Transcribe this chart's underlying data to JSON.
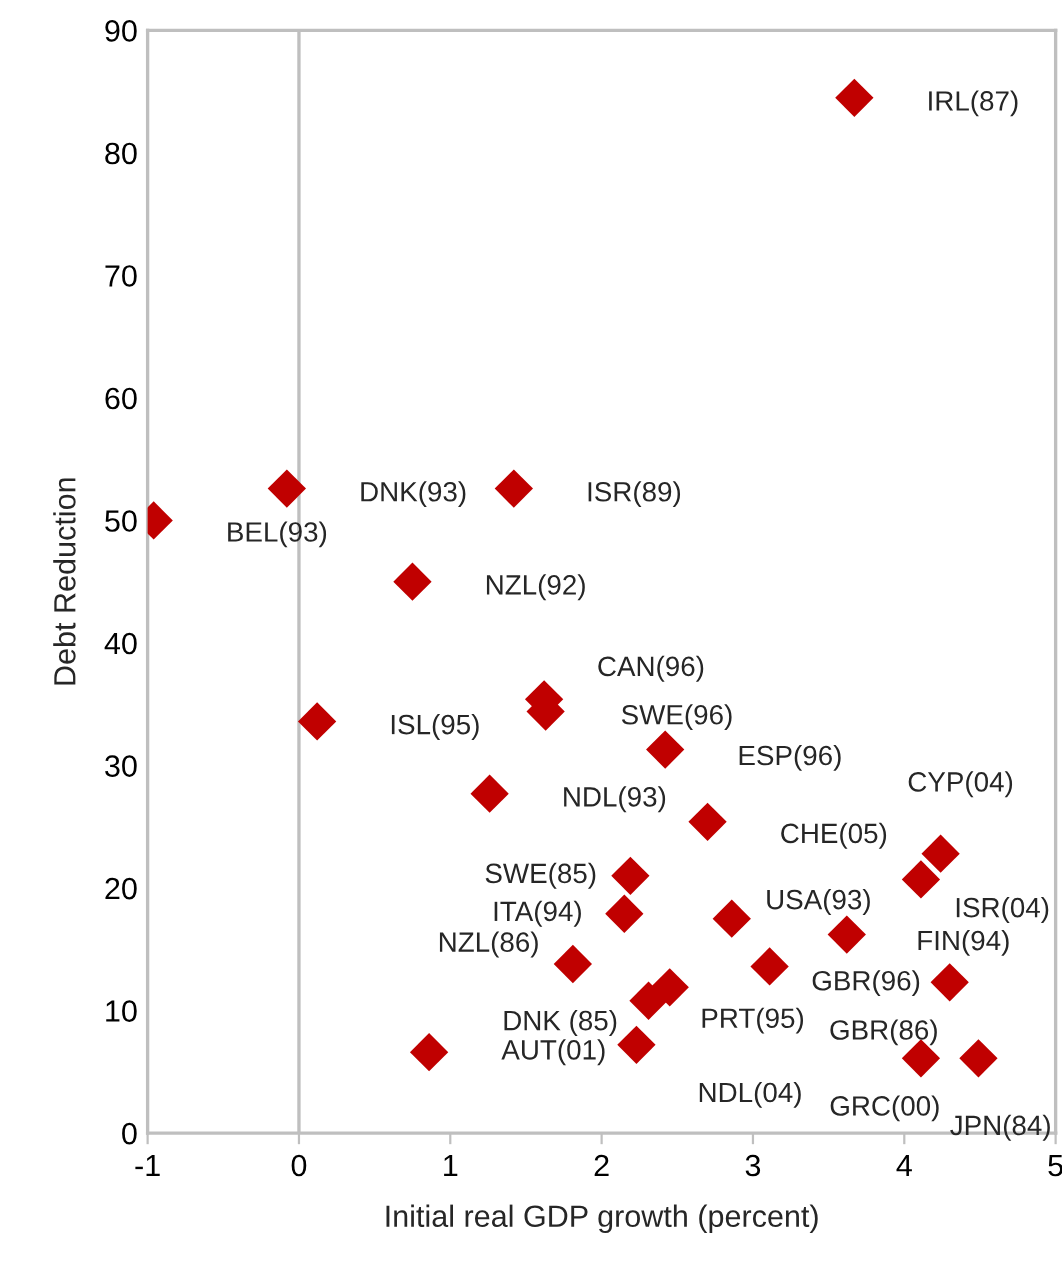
{
  "chart_data": {
    "type": "scatter",
    "xlabel": "Initial real GDP growth (percent)",
    "ylabel": "Debt Reduction",
    "xlim": [
      -1,
      5
    ],
    "ylim": [
      0,
      90
    ],
    "xticks": [
      -1,
      0,
      1,
      2,
      3,
      4,
      5
    ],
    "yticks": [
      0,
      10,
      20,
      30,
      40,
      50,
      60,
      70,
      80,
      90
    ],
    "grid": false,
    "legend": false,
    "marker": "diamond",
    "ref_lines": [
      {
        "axis": "x",
        "value": 0,
        "color": "#bfbfbf"
      }
    ],
    "series": [
      {
        "color": "#c00000",
        "x": [
          3.67,
          -0.08,
          -0.96,
          1.42,
          0.75,
          1.62,
          1.63,
          0.12,
          2.42,
          1.26,
          2.7,
          4.24,
          4.11,
          2.19,
          2.15,
          2.86,
          3.62,
          1.81,
          3.11,
          4.3,
          2.45,
          2.31,
          0.86,
          2.23,
          4.11,
          4.49
        ],
        "values": [
          84.5,
          52.6,
          50.0,
          52.6,
          45.0,
          35.4,
          34.4,
          33.6,
          31.3,
          27.7,
          25.4,
          22.8,
          20.7,
          21.0,
          17.9,
          17.5,
          16.2,
          13.8,
          13.6,
          12.3,
          11.9,
          10.8,
          6.6,
          7.2,
          6.1,
          6.1
        ]
      }
    ],
    "annotations": [
      {
        "text": "IRL(87)",
        "x": 3.67,
        "y": 84.5
      },
      {
        "text": "DNK(93)",
        "x": -0.08,
        "y": 52.6
      },
      {
        "text": "BEL(93)",
        "x": -0.96,
        "y": 50.0
      },
      {
        "text": "ISR(89)",
        "x": 1.42,
        "y": 52.6
      },
      {
        "text": "NZL(92)",
        "x": 0.75,
        "y": 45.0
      },
      {
        "text": "CAN(96)",
        "x": 1.62,
        "y": 35.4
      },
      {
        "text": "SWE(96)",
        "x": 1.63,
        "y": 34.4
      },
      {
        "text": "ISL(95)",
        "x": 0.12,
        "y": 33.6
      },
      {
        "text": "ESP(96)",
        "x": 2.42,
        "y": 31.3
      },
      {
        "text": "NDL(93)",
        "x": 1.26,
        "y": 27.7
      },
      {
        "text": "CHE(05)",
        "x": 2.7,
        "y": 25.4
      },
      {
        "text": "CYP(04)",
        "x": 4.24,
        "y": 22.8
      },
      {
        "text": "ISR(04)",
        "x": 4.11,
        "y": 20.7
      },
      {
        "text": "SWE(85)",
        "x": 2.19,
        "y": 21.0
      },
      {
        "text": "ITA(94)",
        "x": 2.15,
        "y": 17.9
      },
      {
        "text": "USA(93)",
        "x": 2.86,
        "y": 17.5
      },
      {
        "text": "FIN(94)",
        "x": 3.62,
        "y": 16.2
      },
      {
        "text": "NZL(86)",
        "x": 1.81,
        "y": 13.8
      },
      {
        "text": "GBR(96)",
        "x": 3.11,
        "y": 13.6
      },
      {
        "text": "GBR(86)",
        "x": 4.3,
        "y": 12.3
      },
      {
        "text": "PRT(95)",
        "x": 2.45,
        "y": 11.9
      },
      {
        "text": "DNK (85)",
        "x": 2.31,
        "y": 10.8
      },
      {
        "text": "AUT(01)",
        "x": 0.86,
        "y": 6.6
      },
      {
        "text": "NDL(04)",
        "x": 2.23,
        "y": 7.2
      },
      {
        "text": "GRC(00)",
        "x": 4.11,
        "y": 6.1
      },
      {
        "text": "JPN(84)",
        "x": 4.49,
        "y": 6.1
      }
    ]
  }
}
